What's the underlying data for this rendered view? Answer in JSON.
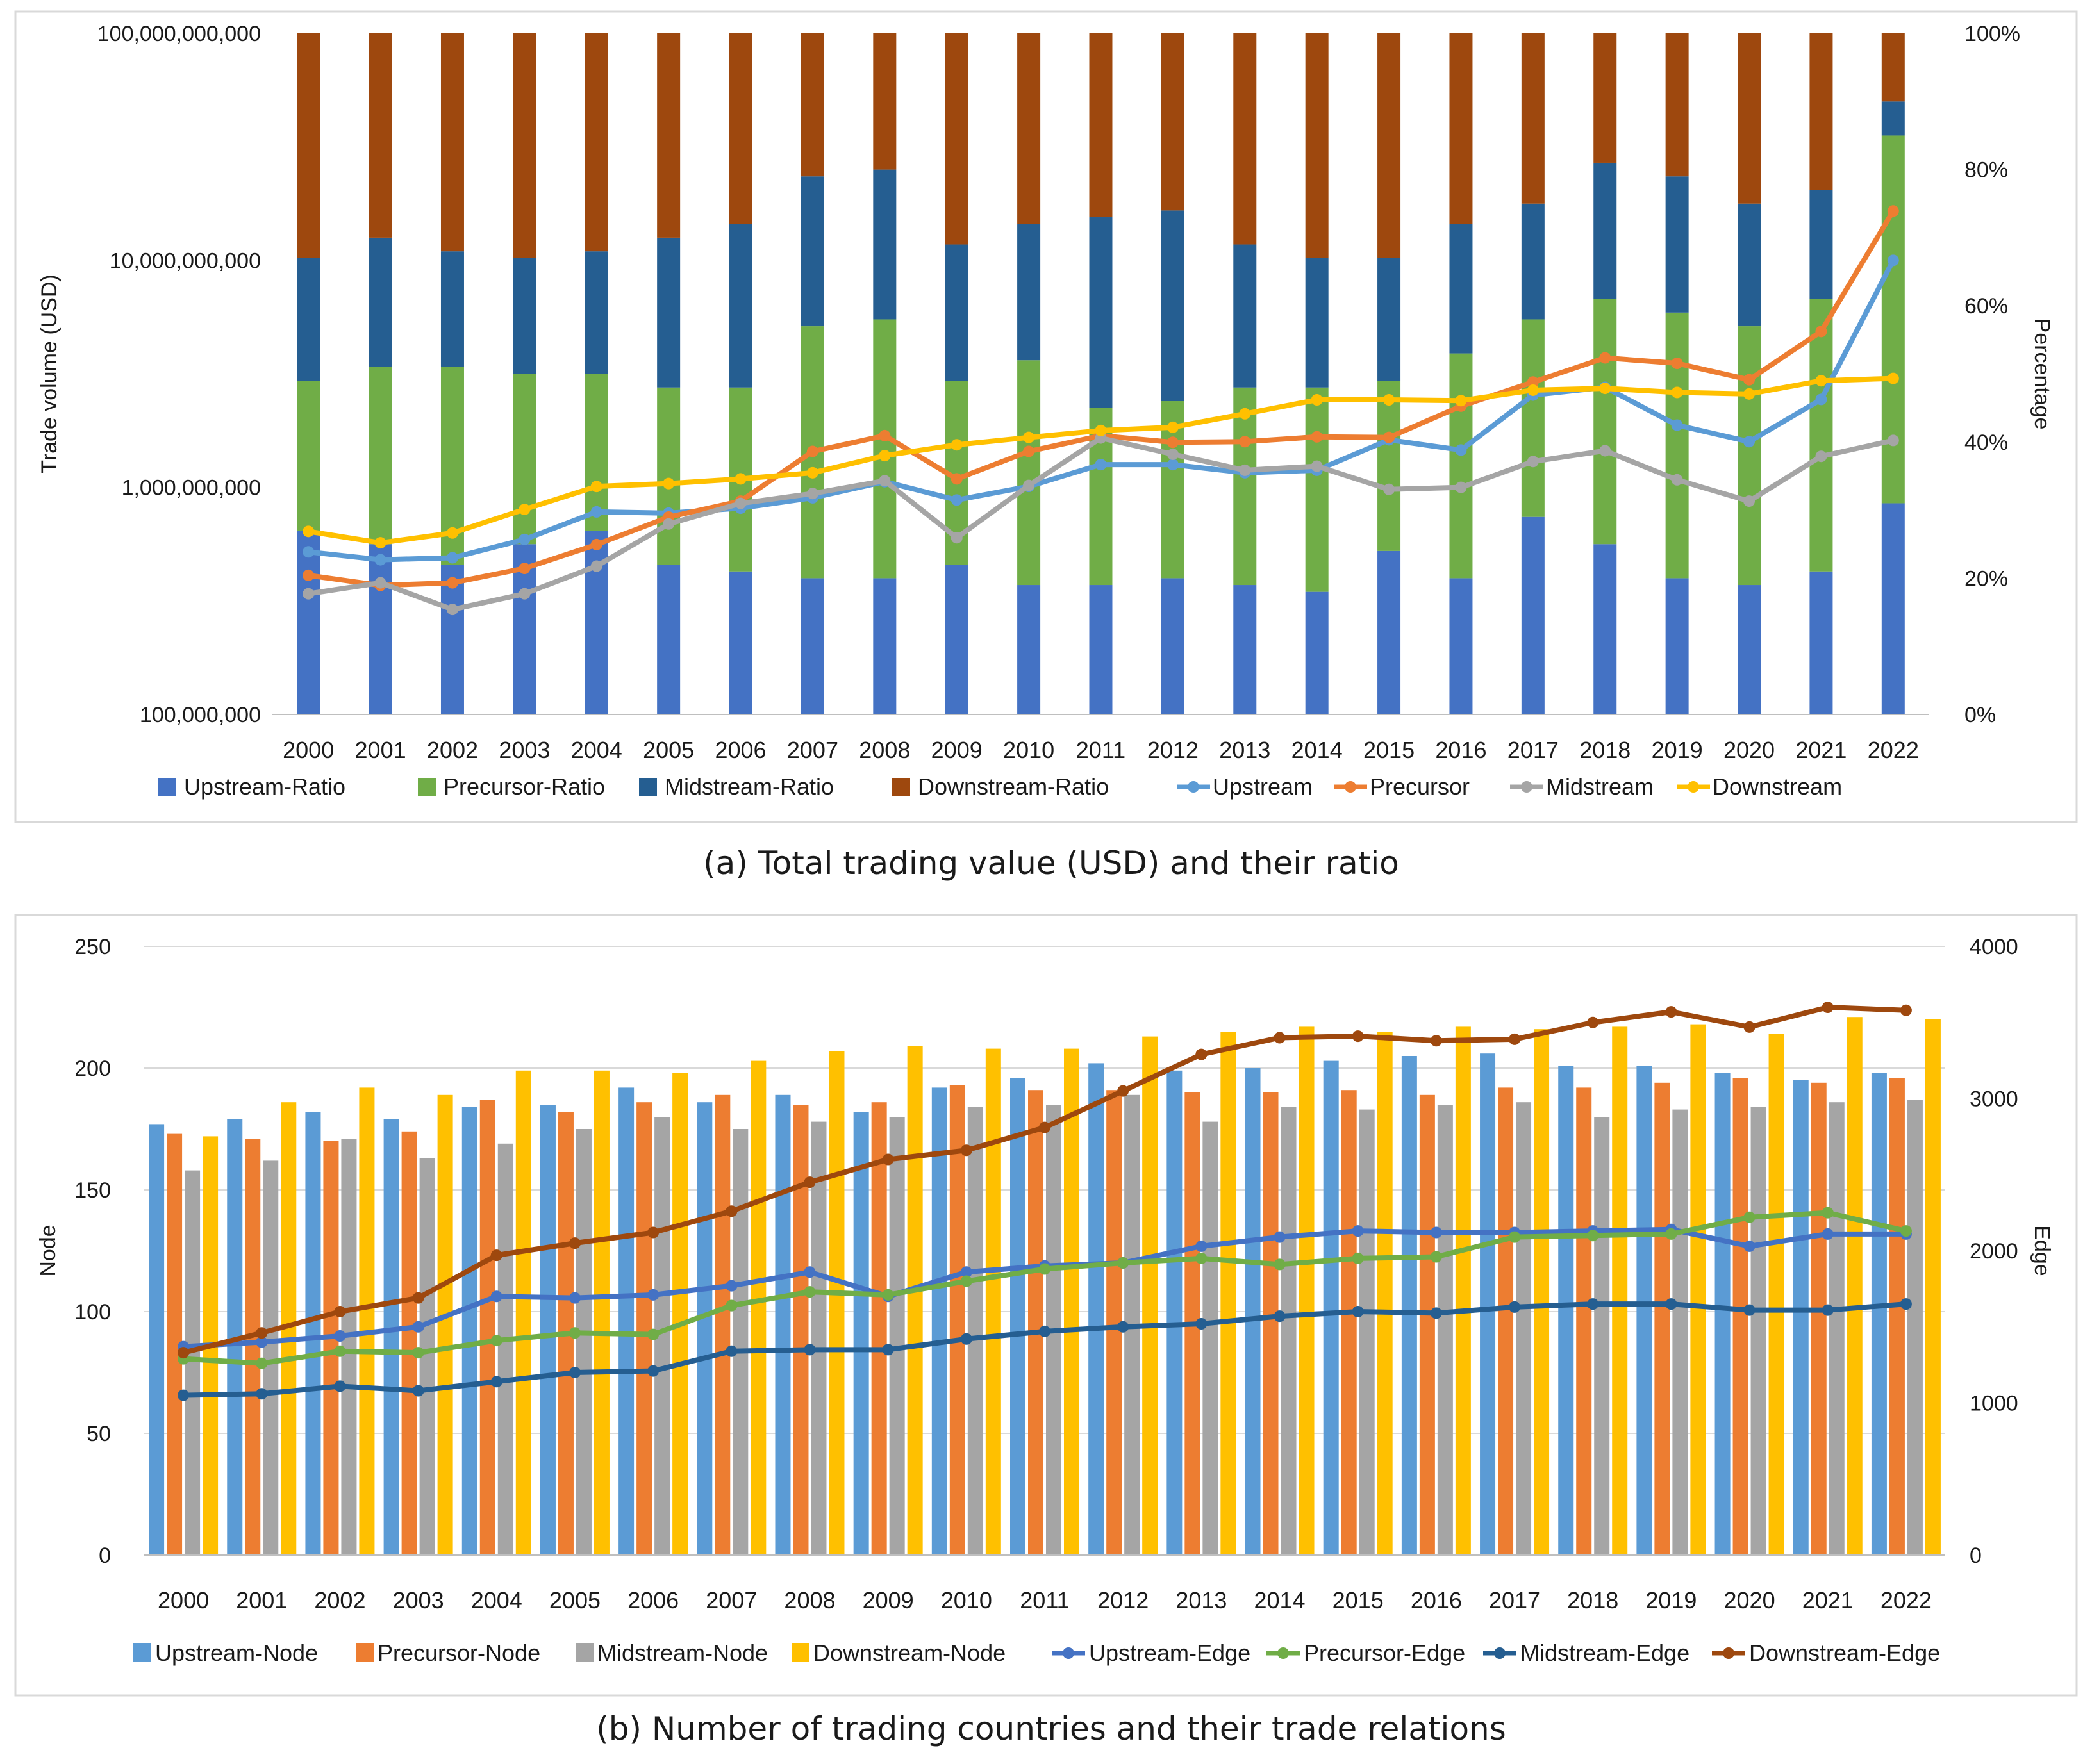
{
  "chart_data": [
    {
      "type": "bar",
      "id": "chart-a",
      "caption": "(a) Total trading value (USD) and their ratio",
      "categories": [
        "2000",
        "2001",
        "2002",
        "2003",
        "2004",
        "2005",
        "2006",
        "2007",
        "2008",
        "2009",
        "2010",
        "2011",
        "2012",
        "2013",
        "2014",
        "2015",
        "2016",
        "2017",
        "2018",
        "2019",
        "2020",
        "2021",
        "2022"
      ],
      "stacked_bars_percent": [
        {
          "name": "Upstream-Ratio",
          "color": "#4472C4",
          "values": [
            27,
            25,
            22,
            25,
            27,
            22,
            21,
            20,
            20,
            22,
            19,
            19,
            20,
            19,
            18,
            24,
            20,
            29,
            25,
            20,
            19,
            21,
            31
          ]
        },
        {
          "name": "Precursor-Ratio",
          "color": "#70AD47",
          "values": [
            22,
            26,
            29,
            25,
            23,
            26,
            27,
            37,
            38,
            27,
            33,
            26,
            26,
            29,
            30,
            25,
            33,
            29,
            36,
            39,
            38,
            40,
            54
          ]
        },
        {
          "name": "Midstream-Ratio",
          "color": "#255E91",
          "values": [
            18,
            19,
            17,
            17,
            18,
            22,
            24,
            22,
            22,
            20,
            20,
            28,
            28,
            21,
            19,
            18,
            19,
            17,
            20,
            20,
            18,
            16,
            5
          ]
        },
        {
          "name": "Downstream-Ratio",
          "color": "#9E480E",
          "values": [
            33,
            30,
            32,
            33,
            32,
            30,
            28,
            21,
            20,
            31,
            28,
            27,
            26,
            31,
            33,
            33,
            28,
            25,
            19,
            21,
            25,
            23,
            10
          ]
        }
      ],
      "lines": [
        {
          "name": "Upstream",
          "color": "#5B9BD5",
          "values": [
            520000000,
            480000000,
            490000000,
            590000000,
            780000000,
            770000000,
            810000000,
            900000000,
            1060000000,
            880000000,
            1010000000,
            1260000000,
            1260000000,
            1160000000,
            1190000000,
            1620000000,
            1460000000,
            2550000000,
            2760000000,
            1880000000,
            1590000000,
            2440000000,
            10000000000
          ]
        },
        {
          "name": "Precursor",
          "color": "#ED7D31",
          "values": [
            410000000,
            370000000,
            380000000,
            440000000,
            560000000,
            740000000,
            870000000,
            1440000000,
            1690000000,
            1090000000,
            1440000000,
            1690000000,
            1580000000,
            1590000000,
            1670000000,
            1660000000,
            2280000000,
            2910000000,
            3720000000,
            3520000000,
            2980000000,
            4860000000,
            16500000000
          ]
        },
        {
          "name": "Midstream",
          "color": "#A5A5A5",
          "values": [
            340000000,
            380000000,
            290000000,
            340000000,
            450000000,
            690000000,
            850000000,
            940000000,
            1070000000,
            600000000,
            1020000000,
            1650000000,
            1400000000,
            1190000000,
            1240000000,
            980000000,
            1000000000,
            1300000000,
            1450000000,
            1080000000,
            870000000,
            1370000000,
            1610000000
          ]
        },
        {
          "name": "Downstream",
          "color": "#FFC000",
          "values": [
            640000000,
            570000000,
            630000000,
            800000000,
            1010000000,
            1040000000,
            1090000000,
            1160000000,
            1380000000,
            1540000000,
            1660000000,
            1780000000,
            1840000000,
            2110000000,
            2430000000,
            2430000000,
            2410000000,
            2680000000,
            2730000000,
            2620000000,
            2580000000,
            2950000000,
            3020000000
          ]
        }
      ],
      "ylabel": "Trade volume (USD)",
      "ylabel_right": "Percentage",
      "yscale": "log",
      "ylim": [
        100000000,
        100000000000
      ],
      "yticks": [
        "100,000,000",
        "1,000,000,000",
        "10,000,000,000",
        "100,000,000,000"
      ],
      "ylim_right": [
        0,
        100
      ],
      "yticks_right": [
        "0%",
        "20%",
        "40%",
        "60%",
        "80%",
        "100%"
      ],
      "legend_position": "bottom",
      "legend": [
        "Upstream-Ratio",
        "Precursor-Ratio",
        "Midstream-Ratio",
        "Downstream-Ratio",
        "Upstream",
        "Precursor",
        "Midstream",
        "Downstream"
      ],
      "grid": false
    },
    {
      "type": "bar",
      "id": "chart-b",
      "caption": "(b) Number of trading countries and their trade relations",
      "categories": [
        "2000",
        "2001",
        "2002",
        "2003",
        "2004",
        "2005",
        "2006",
        "2007",
        "2008",
        "2009",
        "2010",
        "2011",
        "2012",
        "2013",
        "2014",
        "2015",
        "2016",
        "2017",
        "2018",
        "2019",
        "2020",
        "2021",
        "2022"
      ],
      "grouped_bars": [
        {
          "name": "Upstream-Node",
          "color": "#5B9BD5",
          "values": [
            177,
            179,
            182,
            179,
            184,
            185,
            192,
            186,
            189,
            182,
            192,
            196,
            202,
            199,
            200,
            203,
            205,
            206,
            201,
            201,
            198,
            195,
            198
          ]
        },
        {
          "name": "Precursor-Node",
          "color": "#ED7D31",
          "values": [
            173,
            171,
            170,
            174,
            187,
            182,
            186,
            189,
            185,
            186,
            193,
            191,
            191,
            190,
            190,
            191,
            189,
            192,
            192,
            194,
            196,
            194,
            196
          ]
        },
        {
          "name": "Midstream-Node",
          "color": "#A5A5A5",
          "values": [
            158,
            162,
            171,
            163,
            169,
            175,
            180,
            175,
            178,
            180,
            184,
            185,
            189,
            178,
            184,
            183,
            185,
            186,
            180,
            183,
            184,
            186,
            187
          ]
        },
        {
          "name": "Downstream-Node",
          "color": "#FFC000",
          "values": [
            172,
            186,
            192,
            189,
            199,
            199,
            198,
            203,
            207,
            209,
            208,
            208,
            213,
            215,
            217,
            215,
            217,
            216,
            217,
            218,
            214,
            221,
            220
          ]
        }
      ],
      "lines": [
        {
          "name": "Upstream-Edge",
          "color": "#4472C4",
          "values": [
            1370,
            1400,
            1440,
            1500,
            1700,
            1690,
            1710,
            1770,
            1860,
            1700,
            1860,
            1900,
            1920,
            2030,
            2090,
            2130,
            2120,
            2120,
            2130,
            2140,
            2030,
            2110,
            2110
          ]
        },
        {
          "name": "Precursor-Edge",
          "color": "#70AD47",
          "values": [
            1290,
            1260,
            1340,
            1330,
            1410,
            1460,
            1450,
            1640,
            1730,
            1710,
            1800,
            1880,
            1920,
            1950,
            1910,
            1950,
            1960,
            2090,
            2100,
            2110,
            2220,
            2250,
            2130
          ]
        },
        {
          "name": "Midstream-Edge",
          "color": "#255E91",
          "values": [
            1050,
            1060,
            1110,
            1080,
            1140,
            1200,
            1210,
            1340,
            1350,
            1350,
            1420,
            1470,
            1500,
            1520,
            1570,
            1600,
            1590,
            1630,
            1650,
            1650,
            1610,
            1610,
            1650
          ]
        },
        {
          "name": "Downstream-Edge",
          "color": "#9E480E",
          "values": [
            1330,
            1460,
            1600,
            1690,
            1970,
            2050,
            2120,
            2260,
            2450,
            2600,
            2660,
            2810,
            3050,
            3290,
            3400,
            3410,
            3380,
            3390,
            3500,
            3570,
            3470,
            3600,
            3580
          ]
        }
      ],
      "ylabel": "Node",
      "ylabel_right": "Edge",
      "ylim": [
        0,
        250
      ],
      "yticks": [
        "0",
        "50",
        "100",
        "150",
        "200",
        "250"
      ],
      "ylim_right": [
        0,
        4000
      ],
      "yticks_right": [
        "0",
        "1000",
        "2000",
        "3000",
        "4000"
      ],
      "legend_position": "bottom",
      "legend": [
        "Upstream-Node",
        "Precursor-Node",
        "Midstream-Node",
        "Downstream-Node",
        "Upstream-Edge",
        "Precursor-Edge",
        "Midstream-Edge",
        "Downstream-Edge"
      ],
      "grid": true
    }
  ]
}
